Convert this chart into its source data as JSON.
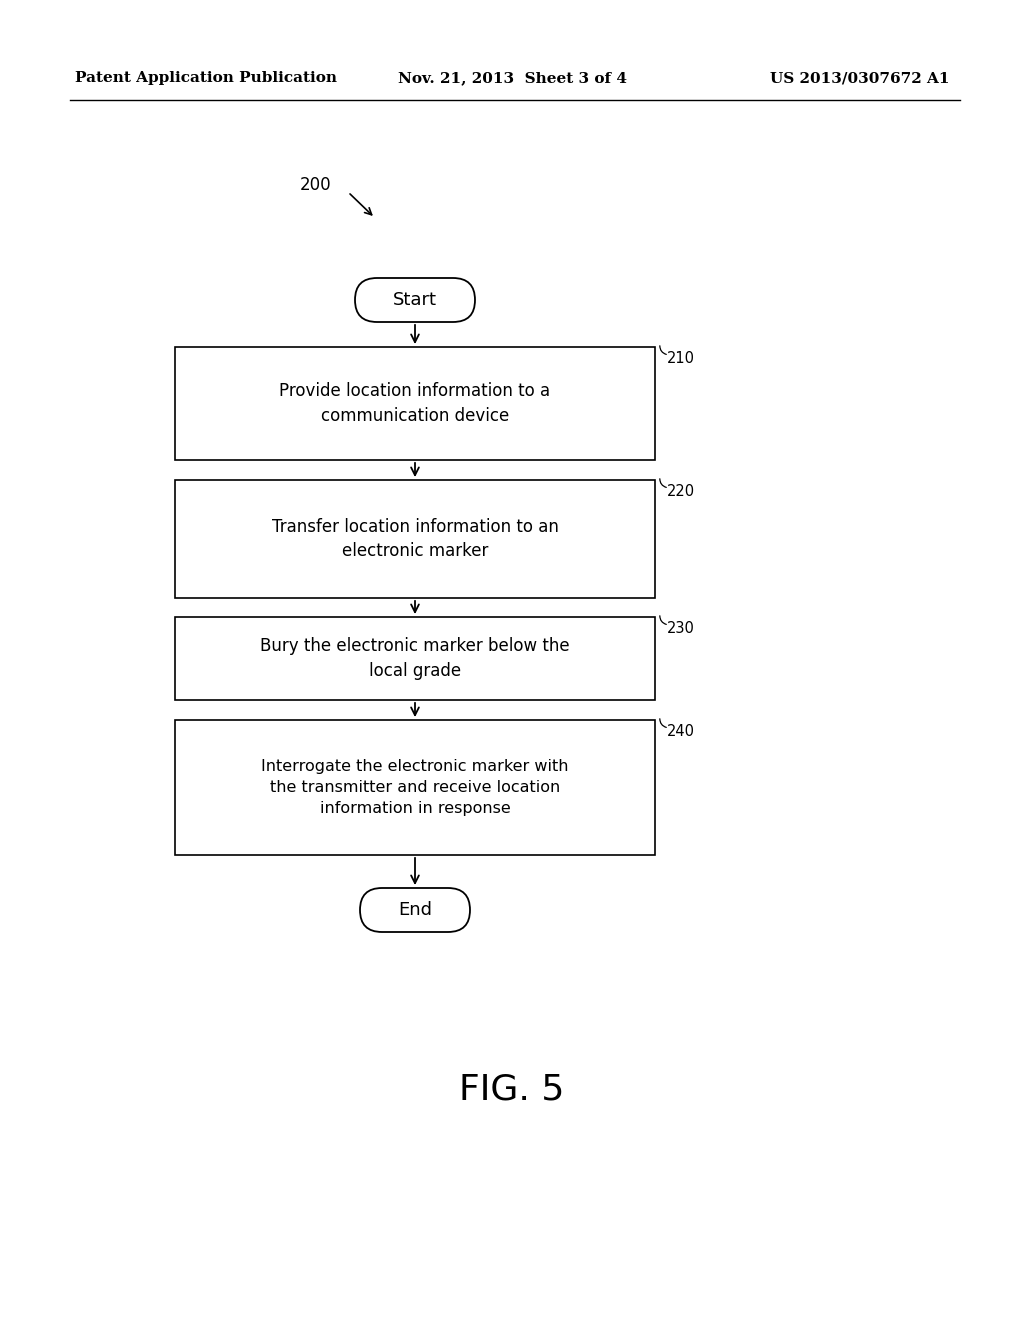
{
  "background_color": "#ffffff",
  "header_left": "Patent Application Publication",
  "header_center": "Nov. 21, 2013  Sheet 3 of 4",
  "header_right": "US 2013/0307672 A1",
  "header_fontsize": 11,
  "fig_label": "FIG. 5",
  "diagram_label": "200",
  "start_label": "Start",
  "end_label": "End",
  "boxes": [
    {
      "label": "Provide location information to a\ncommunication device",
      "number": "210"
    },
    {
      "label": "Transfer location information to an\nelectronic marker",
      "number": "220"
    },
    {
      "label": "Bury the electronic marker below the\nlocal grade",
      "number": "230"
    },
    {
      "label": "Interrogate the electronic marker with\nthe transmitter and receive location\ninformation in response",
      "number": "240"
    }
  ],
  "text_color": "#000000",
  "fig_width": 10.24,
  "fig_height": 13.2,
  "dpi": 100
}
